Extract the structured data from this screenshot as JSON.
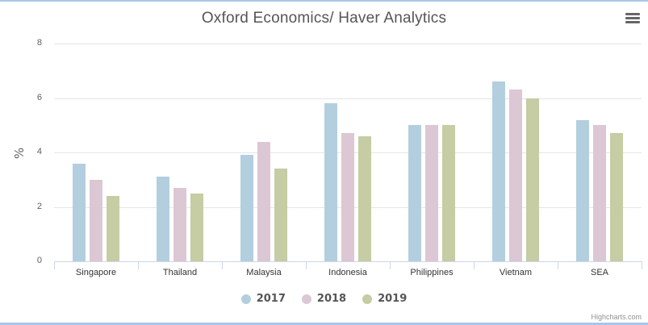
{
  "chart": {
    "title": "Oxford Economics/ Haver Analytics",
    "menu_icon": "hamburger-menu-icon",
    "credits": "Highcharts.com"
  },
  "chart_data": {
    "type": "bar",
    "title": "Oxford Economics/ Haver Analytics",
    "xlabel": "",
    "ylabel": "%",
    "ylim": [
      0,
      8
    ],
    "yticks": [
      "0",
      "2",
      "4",
      "6",
      "8"
    ],
    "grid": true,
    "legend_position": "bottom",
    "categories": [
      "Singapore",
      "Thailand",
      "Malaysia",
      "Indonesia",
      "Philippines",
      "Vietnam",
      "SEA"
    ],
    "series": [
      {
        "name": "2017",
        "color": "#b3cfdf",
        "values": [
          3.6,
          3.1,
          3.9,
          5.8,
          5.0,
          6.6,
          5.2
        ]
      },
      {
        "name": "2018",
        "color": "#dcc7d4",
        "values": [
          3.0,
          2.7,
          4.4,
          4.7,
          5.0,
          6.3,
          5.0
        ]
      },
      {
        "name": "2019",
        "color": "#c6cca3",
        "values": [
          2.4,
          2.5,
          3.4,
          4.6,
          5.0,
          6.0,
          4.7
        ]
      }
    ]
  }
}
